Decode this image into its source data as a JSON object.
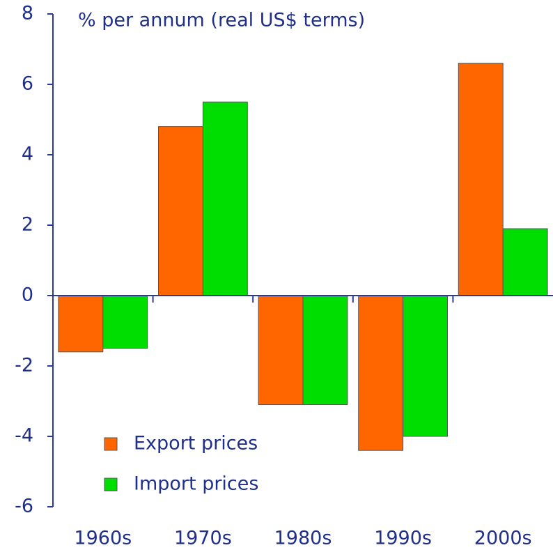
{
  "chart_data": {
    "type": "bar",
    "y_axis_label": "% per annum (real US$ terms)",
    "categories": [
      "1960s",
      "1970s",
      "1980s",
      "1990s",
      "2000s"
    ],
    "series": [
      {
        "name": "Export prices",
        "color": "#ff6600",
        "values": [
          -1.6,
          4.8,
          -3.1,
          -4.4,
          6.6
        ]
      },
      {
        "name": "Import prices",
        "color": "#00dd00",
        "values": [
          -1.5,
          5.5,
          -3.1,
          -4.0,
          1.9
        ]
      }
    ],
    "ylim": [
      -6,
      8
    ],
    "yticks": [
      -6,
      -4,
      -2,
      0,
      2,
      4,
      6,
      8
    ],
    "grid": false
  }
}
